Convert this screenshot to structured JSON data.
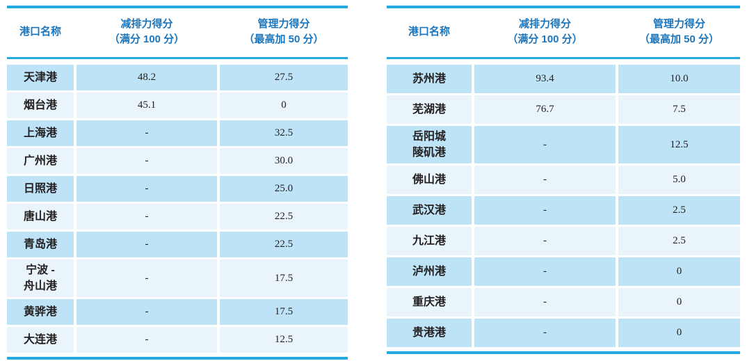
{
  "theme": {
    "rule_blue": "#25a7e0",
    "header_text_blue": "#1b75bc",
    "row_stripe_dark": "#bee3f6",
    "row_stripe_light": "#e9f4fb",
    "body_text": "#231f20"
  },
  "tables": [
    {
      "name": "coastal-ports-score-table",
      "headers": [
        "港口名称",
        "减排力得分\n（满分 100 分）",
        "管理力得分\n（最高加 50 分）"
      ],
      "rows": [
        {
          "port": "天津港",
          "emission_score": "48.2",
          "management_score": "27.5"
        },
        {
          "port": "烟台港",
          "emission_score": "45.1",
          "management_score": "0"
        },
        {
          "port": "上海港",
          "emission_score": "-",
          "management_score": "32.5"
        },
        {
          "port": "广州港",
          "emission_score": "-",
          "management_score": "30.0"
        },
        {
          "port": "日照港",
          "emission_score": "-",
          "management_score": "25.0"
        },
        {
          "port": "唐山港",
          "emission_score": "-",
          "management_score": "22.5"
        },
        {
          "port": "青岛港",
          "emission_score": "-",
          "management_score": "22.5"
        },
        {
          "port": "宁波 -\n舟山港",
          "emission_score": "-",
          "management_score": "17.5"
        },
        {
          "port": "黄骅港",
          "emission_score": "-",
          "management_score": "17.5"
        },
        {
          "port": "大连港",
          "emission_score": "-",
          "management_score": "12.5"
        }
      ]
    },
    {
      "name": "river-ports-score-table",
      "headers": [
        "港口名称",
        "减排力得分\n（满分 100 分）",
        "管理力得分\n（最高加 50 分）"
      ],
      "rows": [
        {
          "port": "苏州港",
          "emission_score": "93.4",
          "management_score": "10.0"
        },
        {
          "port": "芜湖港",
          "emission_score": "76.7",
          "management_score": "7.5"
        },
        {
          "port": "岳阳城\n陵矶港",
          "emission_score": "-",
          "management_score": "12.5"
        },
        {
          "port": "佛山港",
          "emission_score": "-",
          "management_score": "5.0"
        },
        {
          "port": "武汉港",
          "emission_score": "-",
          "management_score": "2.5"
        },
        {
          "port": "九江港",
          "emission_score": "-",
          "management_score": "2.5"
        },
        {
          "port": "泸州港",
          "emission_score": "-",
          "management_score": "0"
        },
        {
          "port": "重庆港",
          "emission_score": "-",
          "management_score": "0"
        },
        {
          "port": "贵港港",
          "emission_score": "-",
          "management_score": "0"
        }
      ]
    }
  ]
}
